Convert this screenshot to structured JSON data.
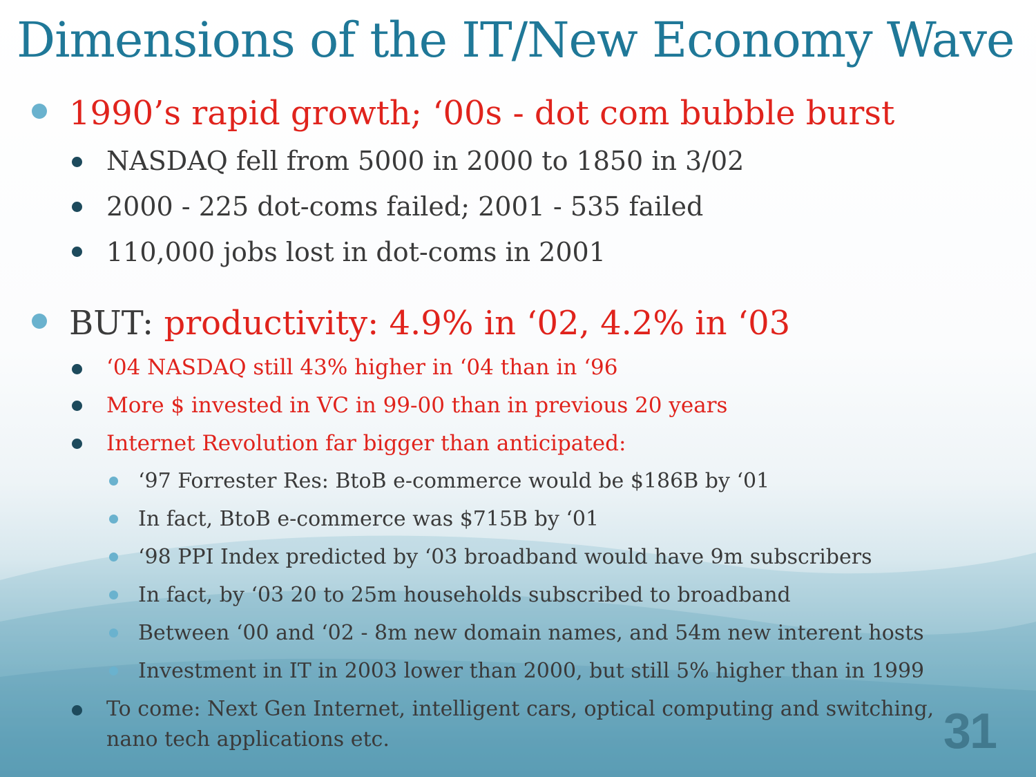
{
  "slide": {
    "title": "Dimensions of the IT/New Economy Wave",
    "number": "31"
  },
  "bullets": {
    "b1": "1990’s rapid growth; ‘00s - dot com bubble burst",
    "b1_sub": [
      "NASDAQ fell from 5000 in 2000 to 1850 in 3/02",
      "2000 - 225 dot-coms failed; 2001 - 535 failed",
      "110,000 jobs lost in dot-coms in 2001"
    ],
    "b2_lead": "BUT: ",
    "b2_red": "productivity: 4.9% in ‘02, 4.2% in ‘03",
    "b2_sub": [
      "‘04 NASDAQ still 43% higher in ‘04 than in ‘96",
      "More $ invested in VC in 99-00 than in previous 20 years",
      "Internet Revolution far bigger than anticipated:"
    ],
    "b2_sub3": [
      "‘97 Forrester Res: BtoB e-commerce would be $186B by ‘01",
      "In fact, BtoB e-commerce was $715B by ‘01",
      "‘98 PPI Index predicted by ‘03 broadband would have 9m subscribers",
      "In fact, by ‘03 20 to 25m households subscribed to broadband",
      "Between ‘00 and ‘02 - 8m new domain names, and 54m new interent hosts",
      "Investment in IT in 2003 lower than 2000, but still 5% higher than in 1999"
    ],
    "b2_last_line1": "To come: Next Gen Internet, intelligent cars, optical computing and switching,",
    "b2_last_line2": "nano tech applications etc."
  },
  "colors": {
    "title": "#1f7898",
    "accent_red": "#e0231c",
    "body_text": "#3a3a3a",
    "bullet_light": "#6ab2ce",
    "bullet_dark": "#1d4a5c"
  }
}
